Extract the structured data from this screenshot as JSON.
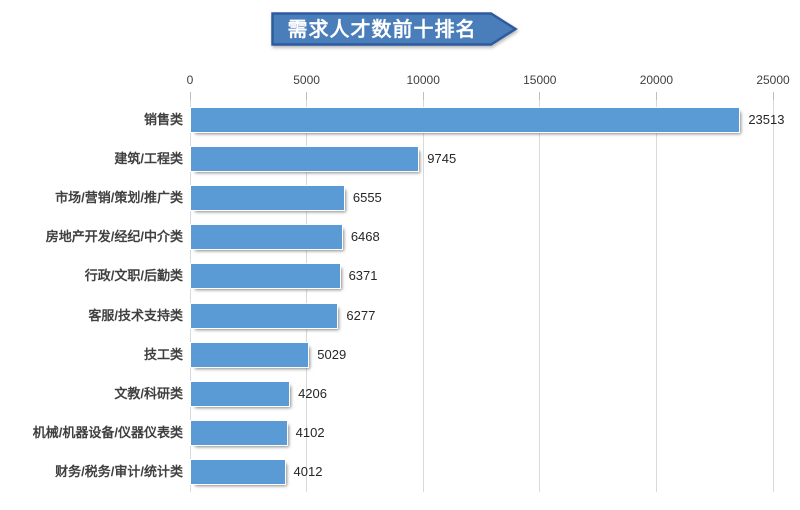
{
  "title": "需求人才数前十排名",
  "chart_data": {
    "type": "bar",
    "orientation": "horizontal",
    "title": "需求人才数前十排名",
    "categories": [
      "销售类",
      "建筑/工程类",
      "市场/营销/策划/推广类",
      "房地产开发/经纪/中介类",
      "行政/文职/后勤类",
      "客服/技术支持类",
      "技工类",
      "文教/科研类",
      "机械/机器设备/仪器仪表类",
      "财务/税务/审计/统计类"
    ],
    "values": [
      23513,
      9745,
      6555,
      6468,
      6371,
      6277,
      5029,
      4206,
      4102,
      4012
    ],
    "xlim": [
      0,
      25000
    ],
    "x_ticks": [
      0,
      5000,
      10000,
      15000,
      20000,
      25000
    ],
    "axis_position": "top",
    "grid": "vertical",
    "data_labels": true,
    "legend": "none",
    "bar_color": "#5B9BD5",
    "banner_fill": "#4A7EBB",
    "banner_border": "#2E5B9F"
  }
}
